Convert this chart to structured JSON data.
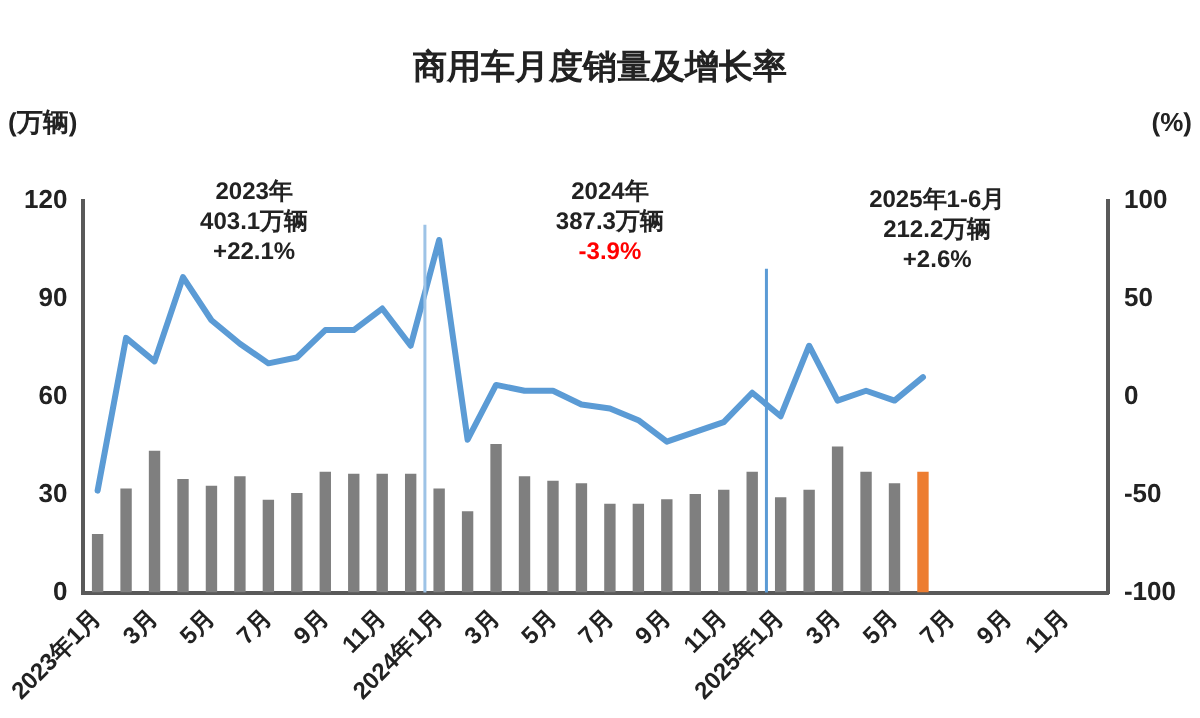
{
  "chart_data": {
    "type": "bar",
    "title": "商用车月度销量及增长率",
    "ylabel": "(万辆)",
    "y2label": "(%)",
    "categories": [
      "2023年1月",
      null,
      "3月",
      null,
      "5月",
      null,
      "7月",
      null,
      "9月",
      null,
      "11月",
      null,
      "2024年1月",
      null,
      "3月",
      null,
      "5月",
      null,
      "7月",
      null,
      "9月",
      null,
      "11月",
      null,
      "2025年1月",
      null,
      "3月",
      null,
      "5月",
      null,
      "7月",
      null,
      "9月",
      null,
      "11月",
      null
    ],
    "series": [
      {
        "colors": [
          "#7f7f7f",
          "#7f7f7f",
          "#7f7f7f",
          "#7f7f7f",
          "#7f7f7f",
          "#7f7f7f",
          "#7f7f7f",
          "#7f7f7f",
          "#7f7f7f",
          "#7f7f7f",
          "#7f7f7f",
          "#7f7f7f",
          "#7f7f7f",
          "#7f7f7f",
          "#7f7f7f",
          "#7f7f7f",
          "#7f7f7f",
          "#7f7f7f",
          "#7f7f7f",
          "#7f7f7f",
          "#7f7f7f",
          "#7f7f7f",
          "#7f7f7f",
          "#7f7f7f",
          "#7f7f7f",
          "#7f7f7f",
          "#7f7f7f",
          "#7f7f7f",
          "#7f7f7f",
          "#ed7d31",
          null,
          null,
          null,
          null,
          null,
          null
        ],
        "values": [
          17.9,
          31.9,
          43.4,
          34.8,
          32.7,
          35.6,
          28.4,
          30.5,
          37,
          36.4,
          36.4,
          36.4,
          31.9,
          24.9,
          45.5,
          35.6,
          34.2,
          33.5,
          27.2,
          27.2,
          28.6,
          30.2,
          31.5,
          37,
          29.2,
          31.5,
          44.7,
          37,
          33.5,
          37,
          null,
          null,
          null,
          null,
          null,
          null
        ]
      },
      {
        "type": "line",
        "axis": "y2",
        "color": "#5b9bd5",
        "values": [
          -48,
          30,
          18,
          61,
          39,
          27,
          17,
          20,
          34,
          34,
          45,
          26,
          80,
          -22,
          6,
          3,
          3,
          -4,
          -6,
          -12,
          -23,
          -18,
          -13,
          2,
          -10,
          26,
          -2,
          3,
          -2,
          10,
          null,
          null,
          null,
          null,
          null,
          null
        ]
      }
    ],
    "ylim": [
      0,
      120
    ],
    "yticks": [
      0,
      30,
      60,
      90,
      120
    ],
    "y2lim": [
      -100,
      100
    ],
    "y2ticks": [
      -100,
      -50,
      0,
      50,
      100
    ],
    "ref_lines": [
      {
        "axis": "x",
        "value": "2024年1月",
        "color": "#9dc3e6"
      },
      {
        "axis": "x",
        "value": "2025年1月",
        "color": "#5b9bd5"
      }
    ],
    "annotations": [
      "2023年\n403.1万辆\n+22.1%",
      "2024年\n387.3万辆\n-3.9%",
      "2025年1-6月\n212.2万辆\n+2.6%"
    ],
    "grid": false,
    "legend": false,
    "marker": "none",
    "line_style": "solid"
  }
}
